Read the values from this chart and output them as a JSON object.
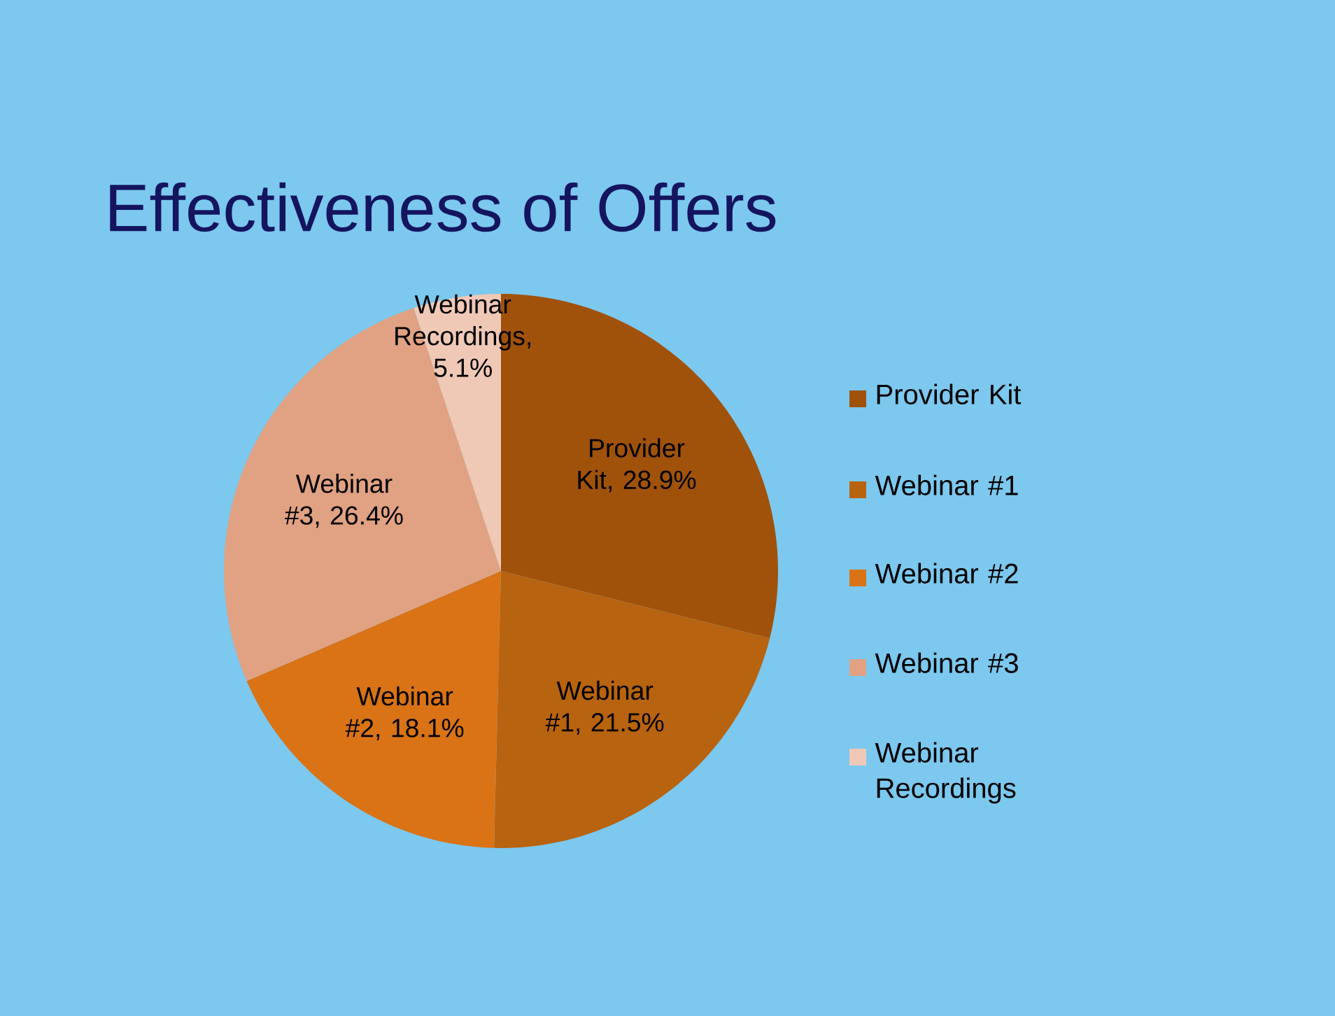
{
  "chart_data": {
    "type": "pie",
    "title": "Effectiveness of Offers",
    "categories": [
      "Provider Kit",
      "Webinar #1",
      "Webinar #2",
      "Webinar #3",
      "Webinar Recordings"
    ],
    "values": [
      28.9,
      21.5,
      18.1,
      26.4,
      5.1
    ],
    "value_labels": [
      "Provider Kit, 28.9%",
      "Webinar #1, 21.5%",
      "Webinar #2, 18.1%",
      "Webinar #3, 26.4%",
      "Webinar Recordings, 5.1%"
    ],
    "colors": [
      "#a0520a",
      "#b8630f",
      "#d97316",
      "#e0a282",
      "#f0c8b6"
    ],
    "legend": "right"
  }
}
